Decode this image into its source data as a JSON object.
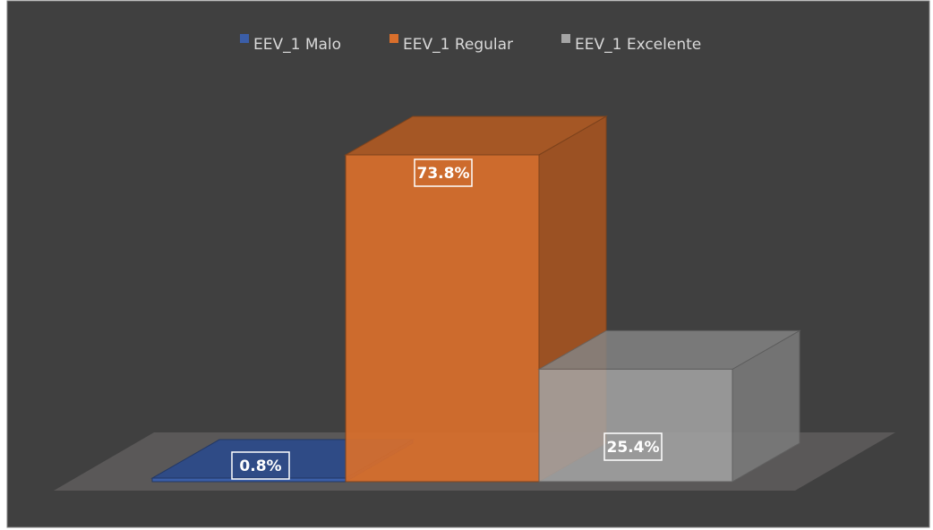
{
  "chart_data": {
    "type": "bar",
    "series": [
      {
        "name": "EEV_1 Malo",
        "color": "#3b5ea8",
        "values": [
          0.8
        ],
        "value_labels": [
          "0.8%"
        ]
      },
      {
        "name": "EEV_1 Regular",
        "color": "#d96f2c",
        "values": [
          73.8
        ],
        "value_labels": [
          "73.8%"
        ]
      },
      {
        "name": "EEV_1 Excelente",
        "color": "#a5a5a5",
        "values": [
          25.4
        ],
        "value_labels": [
          "25.4%"
        ]
      }
    ]
  }
}
